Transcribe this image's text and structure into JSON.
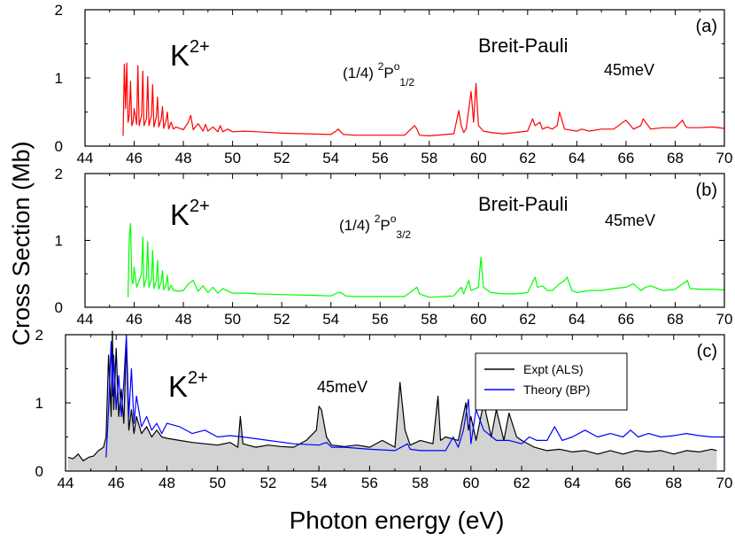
{
  "figure": {
    "ylabel": "Cross Section (Mb)",
    "xlabel": "Photon energy (eV)"
  },
  "chart_data": [
    {
      "type": "line",
      "panel_label": "(a)",
      "ion_base": "K",
      "ion_charge": "2+",
      "state_prefix": "(1/4) ",
      "state_sup": "2",
      "state_term": "P",
      "state_sup2": "o",
      "state_sub": "1/2",
      "method_label": "Breit-Pauli",
      "energy_label": "45meV",
      "xlim": [
        44,
        70
      ],
      "ylim": [
        0,
        2
      ],
      "xticks": [
        "44",
        "46",
        "48",
        "50",
        "52",
        "54",
        "56",
        "58",
        "60",
        "62",
        "64",
        "66",
        "68",
        "70"
      ],
      "yticks": [
        "0",
        "1",
        "2"
      ],
      "series": [
        {
          "color": "#ff0000",
          "x": [
            45.55,
            45.6,
            45.65,
            45.7,
            45.75,
            45.8,
            45.85,
            45.9,
            45.95,
            46.0,
            46.1,
            46.15,
            46.2,
            46.3,
            46.35,
            46.4,
            46.5,
            46.55,
            46.6,
            46.7,
            46.75,
            46.8,
            46.9,
            46.95,
            47.0,
            47.1,
            47.15,
            47.2,
            47.3,
            47.35,
            47.4,
            47.5,
            47.6,
            47.7,
            48.0,
            48.2,
            48.3,
            48.4,
            48.6,
            48.8,
            48.9,
            49.0,
            49.2,
            49.4,
            49.5,
            49.6,
            49.8,
            50.0,
            50.5,
            51.0,
            52.0,
            53.0,
            54.0,
            54.2,
            54.3,
            54.5,
            55.0,
            56.0,
            57.0,
            57.4,
            57.5,
            57.6,
            58.0,
            59.0,
            59.2,
            59.3,
            59.4,
            59.5,
            59.7,
            59.8,
            59.9,
            60.0,
            60.2,
            60.5,
            61.0,
            61.5,
            62.0,
            62.2,
            62.3,
            62.5,
            62.6,
            62.8,
            63.0,
            63.2,
            63.3,
            63.5,
            64.0,
            64.2,
            64.5,
            65.0,
            65.5,
            66.0,
            66.3,
            66.6,
            66.7,
            67.0,
            67.5,
            68.0,
            68.3,
            68.4,
            68.5,
            69.0,
            69.5,
            70.0
          ],
          "y": [
            0.15,
            1.2,
            0.55,
            1.22,
            0.35,
            0.45,
            0.95,
            0.3,
            0.35,
            0.55,
            0.32,
            1.18,
            0.3,
            0.45,
            1.1,
            0.3,
            0.4,
            1.02,
            0.3,
            0.45,
            0.9,
            0.28,
            0.42,
            0.72,
            0.28,
            0.4,
            0.58,
            0.26,
            0.38,
            0.5,
            0.25,
            0.35,
            0.25,
            0.28,
            0.24,
            0.35,
            0.45,
            0.24,
            0.33,
            0.22,
            0.32,
            0.22,
            0.28,
            0.21,
            0.3,
            0.21,
            0.25,
            0.21,
            0.22,
            0.21,
            0.19,
            0.18,
            0.17,
            0.22,
            0.25,
            0.17,
            0.16,
            0.16,
            0.16,
            0.3,
            0.25,
            0.16,
            0.15,
            0.18,
            0.52,
            0.3,
            0.2,
            0.25,
            0.8,
            0.35,
            0.92,
            0.3,
            0.22,
            0.2,
            0.18,
            0.2,
            0.22,
            0.4,
            0.3,
            0.35,
            0.25,
            0.28,
            0.25,
            0.3,
            0.5,
            0.25,
            0.22,
            0.25,
            0.22,
            0.25,
            0.25,
            0.38,
            0.25,
            0.3,
            0.4,
            0.25,
            0.27,
            0.27,
            0.38,
            0.3,
            0.27,
            0.27,
            0.28,
            0.26
          ]
        }
      ]
    },
    {
      "type": "line",
      "panel_label": "(b)",
      "ion_base": "K",
      "ion_charge": "2+",
      "state_prefix": "(1/4) ",
      "state_sup": "2",
      "state_term": "P",
      "state_sup2": "o",
      "state_sub": "3/2",
      "method_label": "Breit-Pauli",
      "energy_label": "45meV",
      "xlim": [
        44,
        70
      ],
      "ylim": [
        0,
        2
      ],
      "xticks": [
        "44",
        "46",
        "48",
        "50",
        "52",
        "54",
        "56",
        "58",
        "60",
        "62",
        "64",
        "66",
        "68",
        "70"
      ],
      "yticks": [
        "0",
        "1",
        "2"
      ],
      "series": [
        {
          "color": "#00ff00",
          "x": [
            45.75,
            45.8,
            45.85,
            45.9,
            45.95,
            46.0,
            46.1,
            46.3,
            46.35,
            46.4,
            46.5,
            46.55,
            46.6,
            46.7,
            46.75,
            46.8,
            46.9,
            46.95,
            47.0,
            47.1,
            47.15,
            47.2,
            47.3,
            47.35,
            47.4,
            47.5,
            47.6,
            47.8,
            48.0,
            48.2,
            48.4,
            48.6,
            48.8,
            49.0,
            49.2,
            49.4,
            49.6,
            50.0,
            50.5,
            51.0,
            52.0,
            53.0,
            54.0,
            54.3,
            54.4,
            54.6,
            55.0,
            56.0,
            57.0,
            57.5,
            57.6,
            58.0,
            59.0,
            59.3,
            59.4,
            59.6,
            59.7,
            60.0,
            60.1,
            60.2,
            60.5,
            61.0,
            61.5,
            62.0,
            62.3,
            62.4,
            62.6,
            62.8,
            63.0,
            63.3,
            63.5,
            63.6,
            63.8,
            64.0,
            64.5,
            65.0,
            65.5,
            66.0,
            66.3,
            66.6,
            66.8,
            67.0,
            67.5,
            68.0,
            68.3,
            68.5,
            68.6,
            69.0,
            69.5,
            70.0
          ],
          "y": [
            0.15,
            1.05,
            1.25,
            0.4,
            0.35,
            0.6,
            0.3,
            0.5,
            1.05,
            0.3,
            0.45,
            0.98,
            0.3,
            0.42,
            0.85,
            0.28,
            0.4,
            0.7,
            0.27,
            0.38,
            0.55,
            0.26,
            0.35,
            0.48,
            0.25,
            0.33,
            0.25,
            0.24,
            0.25,
            0.35,
            0.4,
            0.24,
            0.32,
            0.22,
            0.3,
            0.21,
            0.28,
            0.21,
            0.21,
            0.2,
            0.19,
            0.18,
            0.17,
            0.22,
            0.22,
            0.17,
            0.16,
            0.16,
            0.16,
            0.3,
            0.2,
            0.15,
            0.17,
            0.3,
            0.2,
            0.4,
            0.25,
            0.3,
            0.75,
            0.3,
            0.22,
            0.2,
            0.2,
            0.22,
            0.45,
            0.3,
            0.32,
            0.25,
            0.25,
            0.35,
            0.4,
            0.45,
            0.25,
            0.22,
            0.25,
            0.25,
            0.28,
            0.3,
            0.35,
            0.25,
            0.3,
            0.32,
            0.25,
            0.27,
            0.35,
            0.4,
            0.28,
            0.27,
            0.27,
            0.26
          ]
        }
      ]
    },
    {
      "type": "line",
      "panel_label": "(c)",
      "ion_base": "K",
      "ion_charge": "2+",
      "energy_label": "45meV",
      "xlim": [
        44,
        70
      ],
      "ylim": [
        0,
        2
      ],
      "xticks": [
        "44",
        "46",
        "48",
        "50",
        "52",
        "54",
        "56",
        "58",
        "60",
        "62",
        "64",
        "66",
        "68",
        "70"
      ],
      "yticks": [
        "0",
        "1",
        "2"
      ],
      "legend_position": "top-right",
      "series": [
        {
          "name": "Expt (ALS)",
          "color": "#000000",
          "fill": "#d3d3d3",
          "x": [
            44.1,
            44.3,
            44.5,
            44.7,
            44.9,
            45.1,
            45.3,
            45.5,
            45.6,
            45.7,
            45.8,
            45.85,
            45.9,
            46.0,
            46.1,
            46.2,
            46.3,
            46.4,
            46.5,
            46.6,
            46.7,
            46.8,
            47.0,
            47.2,
            47.4,
            47.6,
            47.8,
            48.0,
            48.5,
            49.0,
            49.5,
            50.0,
            50.5,
            50.8,
            50.9,
            51.0,
            51.5,
            52.0,
            52.5,
            53.0,
            53.5,
            53.9,
            54.0,
            54.1,
            54.3,
            54.5,
            55.0,
            55.5,
            56.0,
            56.5,
            57.0,
            57.2,
            57.4,
            57.6,
            58.0,
            58.5,
            58.7,
            58.8,
            59.0,
            59.5,
            59.8,
            59.9,
            60.0,
            60.2,
            60.5,
            60.8,
            61.0,
            61.3,
            61.5,
            61.8,
            62.0,
            62.5,
            63.0,
            63.5,
            64.0,
            64.5,
            65.0,
            65.5,
            66.0,
            66.5,
            67.0,
            67.5,
            68.0,
            68.5,
            69.0,
            69.5,
            69.7
          ],
          "y": [
            0.2,
            0.18,
            0.25,
            0.15,
            0.2,
            0.22,
            0.3,
            0.35,
            0.5,
            1.7,
            0.8,
            2.1,
            0.9,
            1.8,
            0.8,
            1.2,
            0.7,
            1.9,
            0.6,
            0.9,
            0.55,
            0.8,
            0.55,
            0.65,
            0.5,
            0.6,
            0.5,
            0.48,
            0.45,
            0.42,
            0.4,
            0.38,
            0.42,
            0.35,
            0.8,
            0.4,
            0.35,
            0.38,
            0.36,
            0.35,
            0.45,
            0.6,
            0.95,
            0.9,
            0.5,
            0.38,
            0.36,
            0.38,
            0.35,
            0.45,
            0.35,
            1.3,
            0.6,
            0.38,
            0.45,
            0.4,
            1.1,
            0.45,
            0.5,
            0.45,
            1.0,
            0.6,
            0.8,
            0.45,
            1.0,
            0.5,
            0.9,
            0.45,
            0.85,
            0.5,
            0.45,
            0.35,
            0.3,
            0.32,
            0.28,
            0.3,
            0.25,
            0.3,
            0.25,
            0.3,
            0.28,
            0.3,
            0.25,
            0.3,
            0.28,
            0.32,
            0.3
          ]
        },
        {
          "name": "Theory (BP)",
          "color": "#0000ff",
          "x": [
            45.6,
            45.7,
            45.8,
            45.85,
            45.9,
            46.0,
            46.1,
            46.2,
            46.3,
            46.4,
            46.5,
            46.6,
            46.7,
            46.8,
            47.0,
            47.2,
            47.4,
            47.6,
            47.8,
            48.0,
            48.5,
            49.0,
            49.5,
            50.0,
            50.5,
            51.0,
            52.0,
            53.0,
            54.0,
            54.3,
            54.5,
            55.0,
            56.0,
            57.0,
            57.5,
            57.6,
            58.0,
            59.0,
            59.3,
            59.5,
            59.7,
            59.9,
            60.0,
            60.2,
            60.5,
            61.0,
            61.5,
            62.0,
            62.3,
            62.6,
            63.0,
            63.3,
            63.6,
            64.0,
            64.5,
            65.0,
            65.5,
            66.0,
            66.3,
            66.6,
            67.0,
            67.5,
            68.0,
            68.5,
            69.0,
            69.5,
            70.0
          ],
          "y": [
            0.2,
            0.9,
            1.9,
            1.1,
            1.7,
            0.9,
            1.4,
            0.8,
            1.3,
            2.0,
            0.8,
            1.5,
            0.7,
            1.1,
            0.65,
            0.8,
            0.6,
            0.7,
            0.55,
            0.7,
            0.65,
            0.55,
            0.6,
            0.5,
            0.52,
            0.5,
            0.45,
            0.4,
            0.38,
            0.42,
            0.35,
            0.35,
            0.32,
            0.3,
            0.4,
            0.32,
            0.3,
            0.3,
            0.5,
            0.35,
            0.6,
            1.05,
            0.4,
            0.9,
            0.6,
            0.45,
            0.45,
            0.4,
            0.5,
            0.45,
            0.45,
            0.65,
            0.45,
            0.5,
            0.6,
            0.5,
            0.55,
            0.5,
            0.6,
            0.5,
            0.55,
            0.5,
            0.52,
            0.55,
            0.52,
            0.5,
            0.5
          ]
        }
      ]
    }
  ]
}
